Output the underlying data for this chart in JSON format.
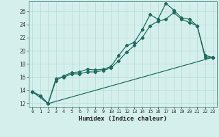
{
  "xlabel": "Humidex (Indice chaleur)",
  "bg_color": "#d5f0ec",
  "grid_color": "#b8ddd8",
  "line_color": "#1e6b5e",
  "xlim": [
    -0.5,
    23.5
  ],
  "ylim": [
    11.5,
    27.5
  ],
  "xticks": [
    0,
    1,
    2,
    3,
    4,
    5,
    6,
    7,
    8,
    9,
    10,
    11,
    12,
    13,
    14,
    15,
    16,
    17,
    18,
    19,
    20,
    21,
    22,
    23
  ],
  "yticks": [
    12,
    14,
    16,
    18,
    20,
    22,
    24,
    26
  ],
  "series1_x": [
    0,
    1,
    2,
    3,
    4,
    5,
    6,
    7,
    8,
    9,
    10,
    11,
    12,
    13,
    14,
    15,
    16,
    17,
    18,
    19,
    20,
    21,
    22,
    23
  ],
  "series1_y": [
    13.8,
    13.2,
    12.0,
    15.5,
    16.2,
    16.7,
    16.8,
    17.2,
    17.1,
    17.2,
    17.6,
    19.3,
    20.8,
    21.3,
    23.2,
    25.5,
    24.8,
    27.2,
    26.2,
    25.0,
    24.8,
    23.8,
    19.0,
    19.0
  ],
  "series2_x": [
    0,
    1,
    2,
    3,
    4,
    5,
    6,
    7,
    8,
    9,
    10,
    11,
    12,
    13,
    14,
    15,
    16,
    17,
    18,
    19,
    20,
    21,
    22,
    23
  ],
  "series2_y": [
    13.8,
    13.2,
    12.0,
    15.8,
    16.0,
    16.5,
    16.5,
    16.8,
    16.8,
    17.0,
    17.4,
    18.5,
    19.8,
    20.8,
    22.0,
    23.8,
    24.5,
    24.8,
    25.8,
    24.8,
    24.3,
    23.8,
    19.3,
    19.0
  ],
  "series3_x": [
    0,
    2,
    23
  ],
  "series3_y": [
    13.8,
    12.0,
    19.0
  ]
}
